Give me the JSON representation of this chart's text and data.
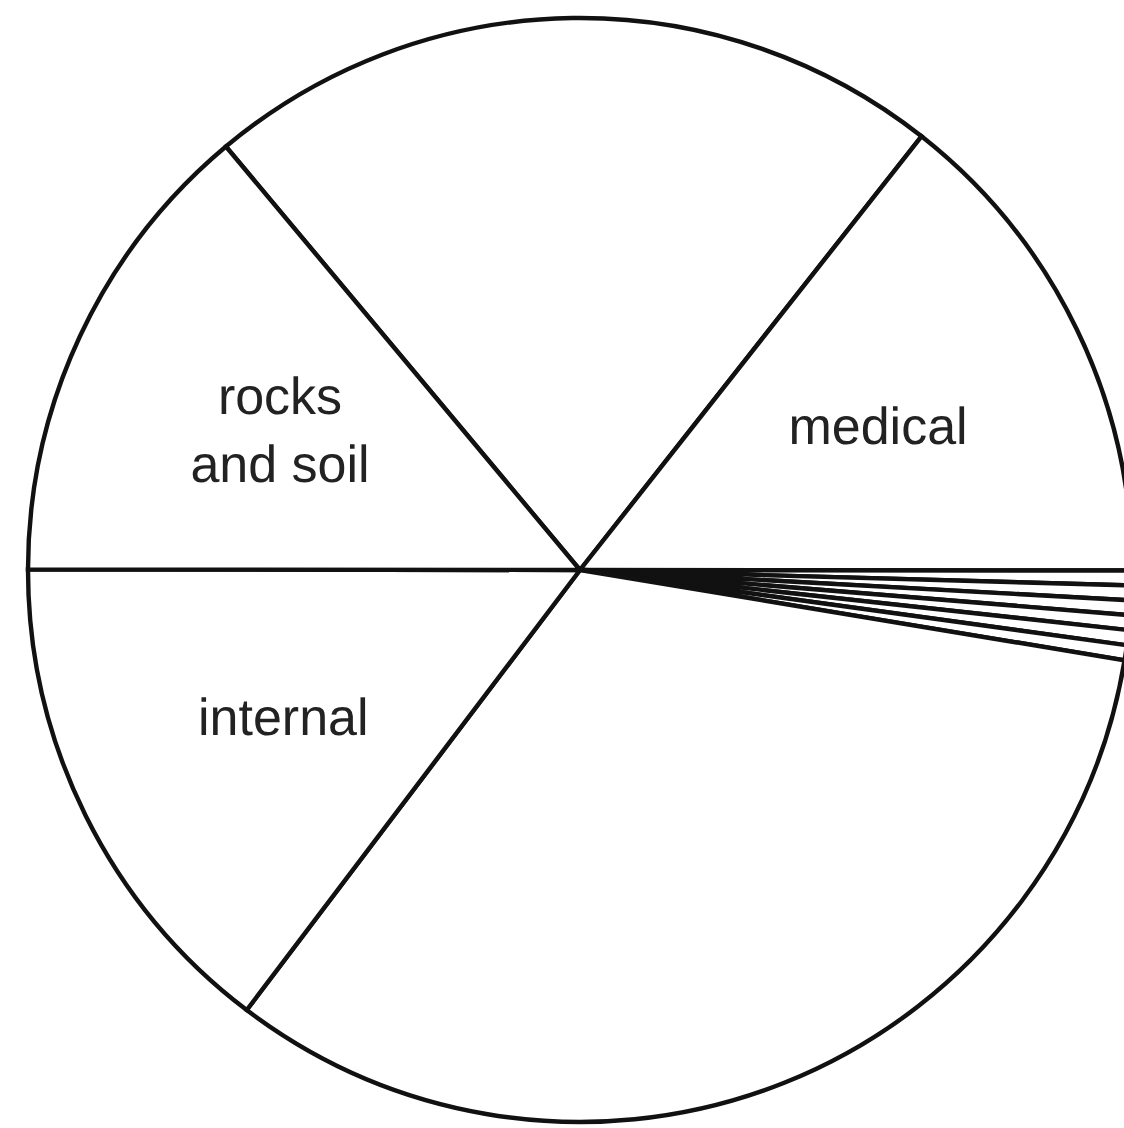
{
  "chart_data": {
    "type": "pie",
    "categories": [
      null,
      "medical",
      null,
      null,
      null,
      null,
      null,
      null,
      null,
      "internal",
      "rocks and soil"
    ],
    "values": [
      21.7,
      14.4,
      0.43,
      0.43,
      0.43,
      0.43,
      0.44,
      0.44,
      32.7,
      14.7,
      13.9
    ],
    "colors": [
      "#ffffff",
      "#ffffff",
      "#ffffff",
      "#ffffff",
      "#ffffff",
      "#ffffff",
      "#ffffff",
      "#ffffff",
      "#ffffff",
      "#ffffff",
      "#ffffff"
    ],
    "legend": false
  }
}
